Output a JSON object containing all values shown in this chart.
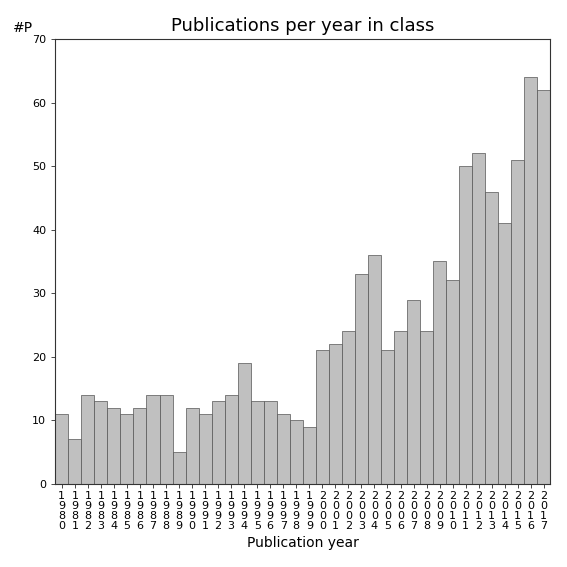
{
  "title": "Publications per year in class",
  "xlabel": "Publication year",
  "ylabel": "#P",
  "bar_color": "#c0c0c0",
  "edge_color": "#555555",
  "background_color": "#ffffff",
  "ylim": [
    0,
    70
  ],
  "yticks": [
    0,
    10,
    20,
    30,
    40,
    50,
    60,
    70
  ],
  "years": [
    1980,
    1981,
    1982,
    1983,
    1984,
    1985,
    1986,
    1987,
    1988,
    1989,
    1990,
    1991,
    1992,
    1993,
    1994,
    1995,
    1996,
    1997,
    1998,
    1999,
    2000,
    2001,
    2002,
    2003,
    2004,
    2005,
    2006,
    2007,
    2008,
    2009,
    2010,
    2011,
    2012,
    2013,
    2014,
    2015,
    2016,
    2017
  ],
  "values": [
    11,
    7,
    14,
    13,
    12,
    11,
    12,
    14,
    14,
    5,
    12,
    11,
    13,
    14,
    19,
    13,
    13,
    11,
    10,
    9,
    21,
    22,
    24,
    33,
    36,
    21,
    24,
    29,
    24,
    35,
    32,
    50,
    52,
    46,
    41,
    51,
    64,
    62
  ],
  "title_fontsize": 13,
  "axis_fontsize": 10,
  "tick_fontsize": 8
}
